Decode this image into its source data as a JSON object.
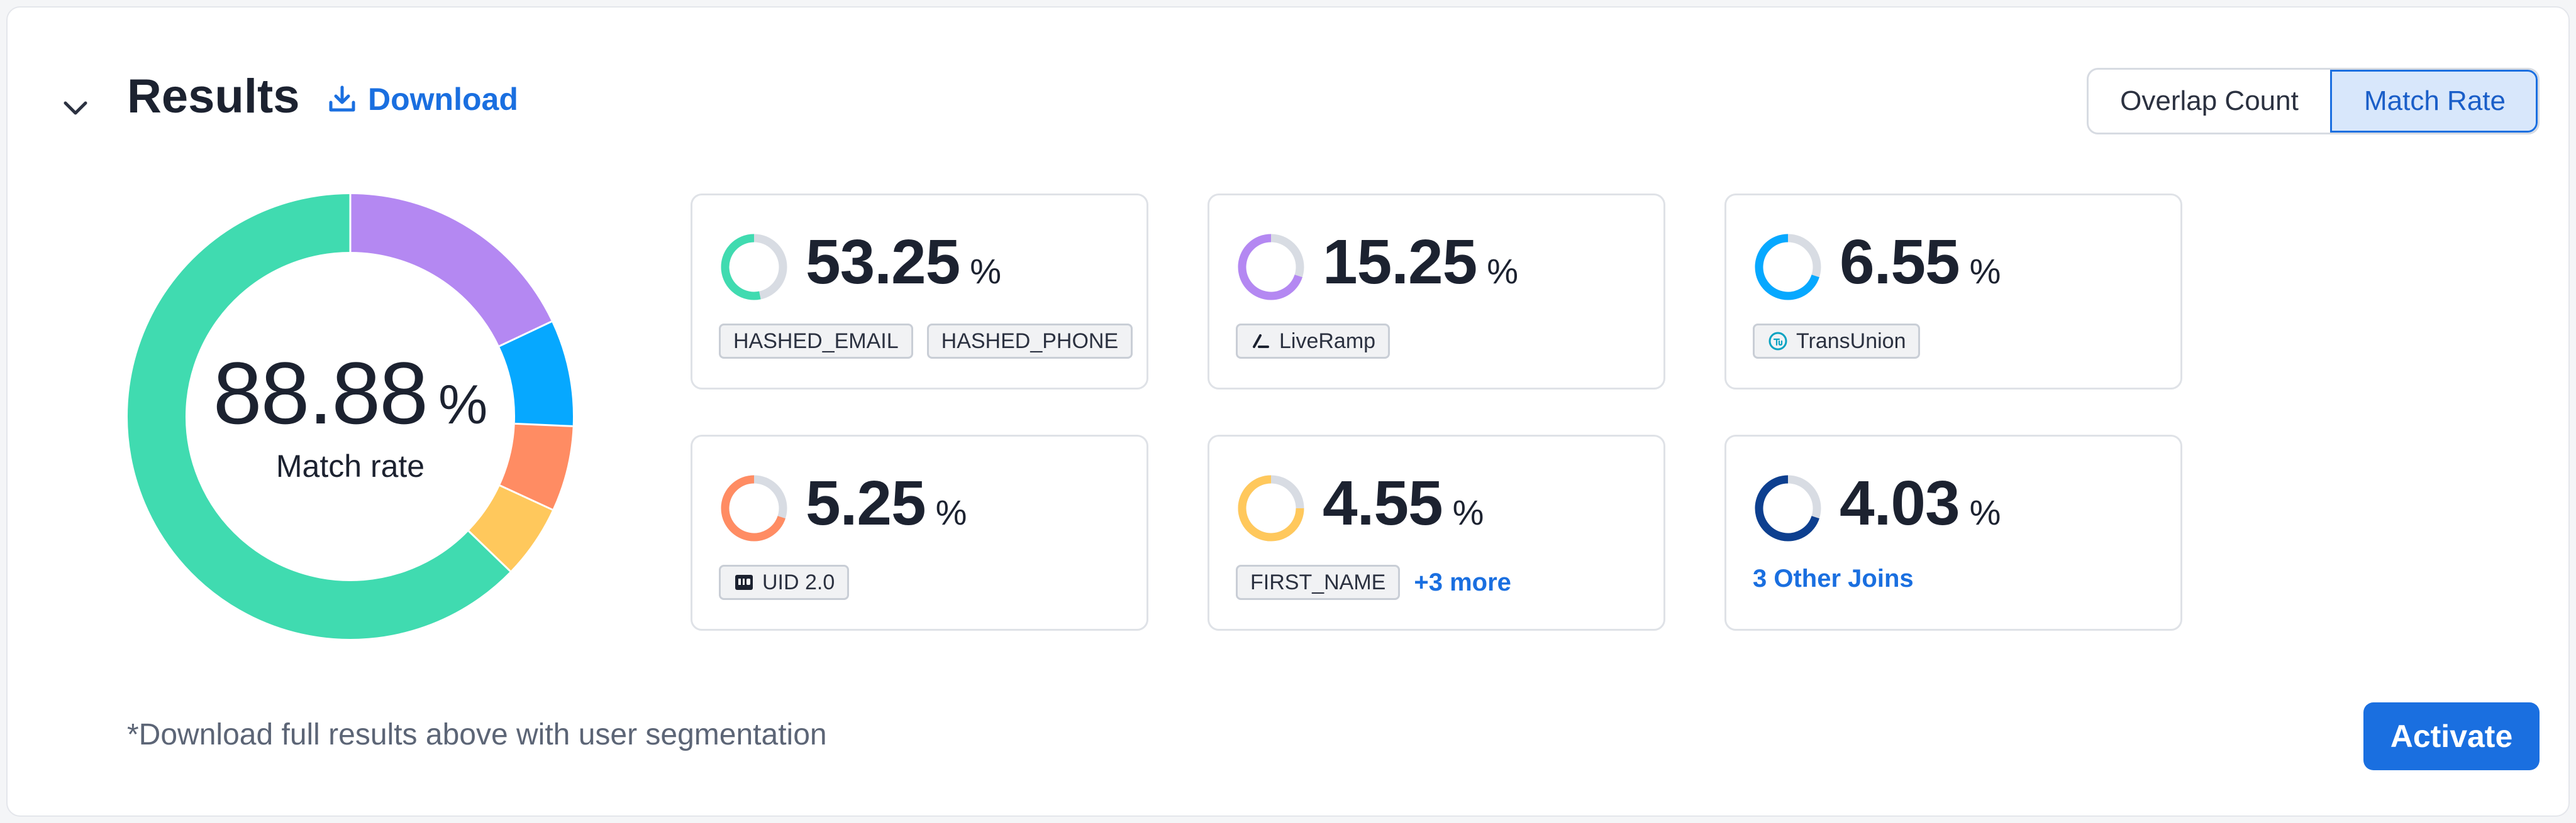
{
  "header": {
    "title": "Results",
    "download_label": "Download"
  },
  "toggle": {
    "options": [
      "Overlap Count",
      "Match Rate"
    ],
    "selected": "Match Rate"
  },
  "summary": {
    "value": "88.88",
    "unit": "%",
    "label": "Match rate"
  },
  "colors": {
    "green": "#40dbb0",
    "purple": "#b488f2",
    "blue": "#06a8ff",
    "orange": "#ff8c63",
    "yellow": "#ffc85c",
    "navy": "#0d3f8f",
    "track": "#d8dce3",
    "accent": "#1a6fe0"
  },
  "donut_segments": [
    {
      "color": "#b488f2",
      "value": 15.25
    },
    {
      "color": "#06a8ff",
      "value": 6.55
    },
    {
      "color": "#ff8c63",
      "value": 5.25
    },
    {
      "color": "#ffc85c",
      "value": 4.55
    },
    {
      "color": "#40dbb0",
      "value": 53.25
    }
  ],
  "cards": [
    {
      "value": "53.25",
      "unit": "%",
      "fraction": 0.5325,
      "color": "#40dbb0",
      "tags": [
        {
          "label": "HASHED_EMAIL"
        },
        {
          "label": "HASHED_PHONE"
        }
      ]
    },
    {
      "value": "15.25",
      "unit": "%",
      "fraction": 0.7,
      "color": "#b488f2",
      "tags": [
        {
          "label": "LiveRamp",
          "icon": "liveramp-icon"
        }
      ]
    },
    {
      "value": "6.55",
      "unit": "%",
      "fraction": 0.7,
      "color": "#06a8ff",
      "tags": [
        {
          "label": "TransUnion",
          "icon": "transunion-icon"
        }
      ]
    },
    {
      "value": "5.25",
      "unit": "%",
      "fraction": 0.7,
      "color": "#ff8c63",
      "tags": [
        {
          "label": "UID 2.0",
          "icon": "uid-icon"
        }
      ]
    },
    {
      "value": "4.55",
      "unit": "%",
      "fraction": 0.75,
      "color": "#ffc85c",
      "tags": [
        {
          "label": "FIRST_NAME"
        }
      ],
      "more": "+3 more"
    },
    {
      "value": "4.03",
      "unit": "%",
      "fraction": 0.7,
      "color": "#0d3f8f",
      "tags": [],
      "more": "3 Other Joins"
    }
  ],
  "footer": {
    "note": "*Download full results above with user segmentation",
    "activate_label": "Activate"
  }
}
